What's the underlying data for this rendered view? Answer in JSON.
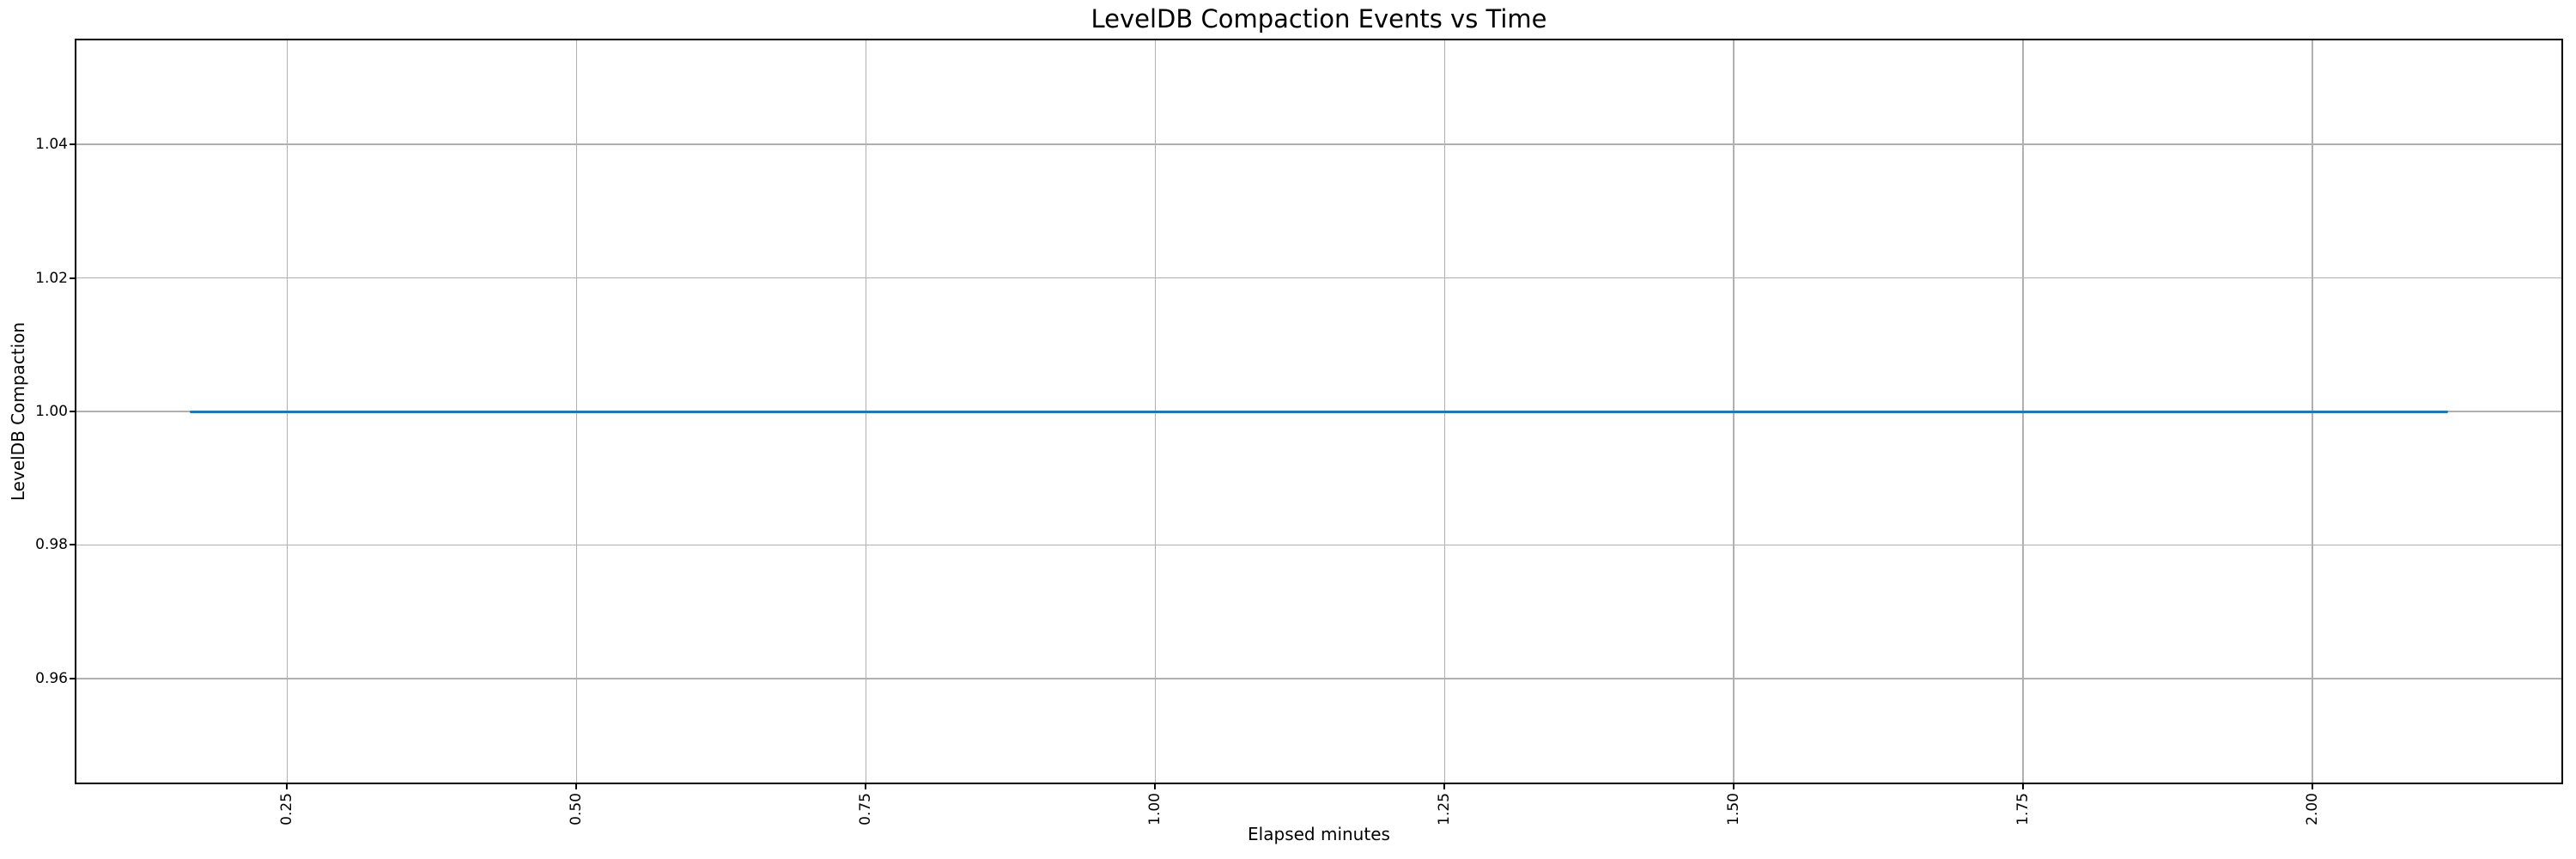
{
  "colors": {
    "line": "#1f77b4",
    "grid": "#b0b0b0",
    "axis": "#000000",
    "text": "#000000",
    "background": "#ffffff"
  },
  "chart_data": {
    "type": "line",
    "title": "LevelDB Compaction Events vs Time",
    "xlabel": "Elapsed minutes",
    "ylabel": "LevelDB Compaction",
    "grid": true,
    "legend": "none",
    "x_tick_rotation": 90,
    "xlim": [
      0.068,
      2.215
    ],
    "ylim": [
      0.9444,
      1.0556
    ],
    "xticks": {
      "values": [
        0.25,
        0.5,
        0.75,
        1.0,
        1.25,
        1.5,
        1.75,
        2.0
      ],
      "labels": [
        "0.25",
        "0.50",
        "0.75",
        "1.00",
        "1.25",
        "1.50",
        "1.75",
        "2.00"
      ]
    },
    "yticks": {
      "values": [
        0.96,
        0.98,
        1.0,
        1.02,
        1.04
      ],
      "labels": [
        "0.96",
        "0.98",
        "1.00",
        "1.02",
        "1.04"
      ]
    },
    "series": [
      {
        "x": [
          0.166,
          2.117
        ],
        "y": [
          1.0,
          1.0
        ],
        "color": "#1f77b4"
      }
    ]
  }
}
